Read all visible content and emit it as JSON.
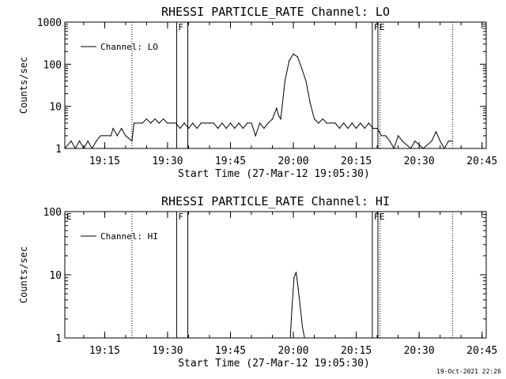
{
  "footer": {
    "date": "19-Oct-2021 22:26"
  },
  "chart_data": [
    {
      "type": "line",
      "title": "RHESSI PARTICLE_RATE Channel: LO",
      "xlabel": "Start Time (27-Mar-12 19:05:30)",
      "ylabel": "Counts/sec",
      "yscale": "log",
      "ylim": [
        1,
        1000
      ],
      "xlim": [
        "19:05:30",
        "20:46:00"
      ],
      "x_ticks": [
        "19:15",
        "19:30",
        "19:45",
        "20:00",
        "20:15",
        "20:30",
        "20:45"
      ],
      "y_ticks": [
        "1",
        "10",
        "100",
        "1000"
      ],
      "legend": {
        "entries": [
          "Channel: LO"
        ],
        "position": "top-left"
      },
      "markers": [
        {
          "label": "F",
          "time": "19:32:10",
          "style": "solid"
        },
        {
          "label": "",
          "time": "19:34:50",
          "style": "solid"
        },
        {
          "label": "F",
          "time": "20:18:50",
          "style": "solid"
        },
        {
          "label": "E",
          "time": "20:20:10",
          "style": "solid"
        },
        {
          "label": "",
          "time": "19:21:30",
          "style": "dotted"
        },
        {
          "label": "",
          "time": "20:20:40",
          "style": "dotted"
        },
        {
          "label": "",
          "time": "20:38:00",
          "style": "dotted"
        }
      ],
      "series": [
        {
          "name": "Channel: LO",
          "x": [
            "19:05:30",
            "19:07:00",
            "19:08:00",
            "19:09:00",
            "19:10:00",
            "19:11:00",
            "19:12:00",
            "19:13:00",
            "19:14:00",
            "19:16:30",
            "19:17:00",
            "19:18:00",
            "19:19:00",
            "19:20:00",
            "19:21:30",
            "19:22:00",
            "19:24:00",
            "19:25:00",
            "19:26:00",
            "19:27:00",
            "19:28:00",
            "19:29:00",
            "19:30:00",
            "19:31:00",
            "19:32:00",
            "19:33:00",
            "19:34:00",
            "19:35:00",
            "19:36:00",
            "19:37:00",
            "19:38:00",
            "19:39:00",
            "19:40:00",
            "19:41:00",
            "19:42:00",
            "19:43:00",
            "19:44:00",
            "19:45:00",
            "19:46:00",
            "19:47:00",
            "19:48:00",
            "19:49:00",
            "19:50:00",
            "19:51:00",
            "19:52:00",
            "19:53:00",
            "19:54:00",
            "19:55:00",
            "19:56:00",
            "19:56:30",
            "19:57:00",
            "19:58:00",
            "19:59:00",
            "20:00:00",
            "20:01:00",
            "20:02:00",
            "20:03:00",
            "20:04:00",
            "20:05:00",
            "20:06:00",
            "20:07:00",
            "20:08:00",
            "20:09:00",
            "20:10:00",
            "20:11:00",
            "20:12:00",
            "20:13:00",
            "20:14:00",
            "20:15:00",
            "20:16:00",
            "20:17:00",
            "20:18:00",
            "20:19:00",
            "20:20:00",
            "20:21:00",
            "20:22:00",
            "20:23:00",
            "20:24:00",
            "20:25:00",
            "20:26:00",
            "20:28:00",
            "20:29:00",
            "20:31:00",
            "20:33:00",
            "20:34:00",
            "20:35:00",
            "20:36:00",
            "20:37:00",
            "20:38:00"
          ],
          "y": [
            1,
            1.5,
            1,
            1.5,
            1,
            1.5,
            1,
            1.5,
            2,
            2,
            3,
            2,
            3,
            2,
            1.5,
            4,
            4,
            5,
            4,
            5,
            4,
            5,
            4,
            4,
            4,
            3,
            4,
            3,
            4,
            3,
            4,
            4,
            4,
            4,
            3,
            4,
            3,
            4,
            3,
            4,
            3,
            4,
            4,
            2,
            4,
            3,
            4,
            5,
            9,
            6,
            5,
            40,
            120,
            175,
            150,
            80,
            40,
            12,
            5,
            4,
            5,
            4,
            4,
            4,
            3,
            4,
            3,
            4,
            3,
            4,
            3,
            4,
            3,
            3,
            2,
            2,
            1.5,
            1,
            2,
            1.5,
            1,
            1.5,
            1,
            1.5,
            2.5,
            1.5,
            1,
            1.5,
            1.5
          ]
        }
      ]
    },
    {
      "type": "line",
      "title": "RHESSI PARTICLE_RATE Channel: HI",
      "xlabel": "Start Time (27-Mar-12 19:05:30)",
      "ylabel": "Counts/sec",
      "yscale": "log",
      "ylim": [
        1,
        100
      ],
      "xlim": [
        "19:05:30",
        "20:46:00"
      ],
      "x_ticks": [
        "19:15",
        "19:30",
        "19:45",
        "20:00",
        "20:15",
        "20:30",
        "20:45"
      ],
      "y_ticks": [
        "1",
        "10",
        "100"
      ],
      "legend": {
        "entries": [
          "Channel: HI"
        ],
        "position": "top-left"
      },
      "markers": [
        {
          "label": "E",
          "time": "19:05:30",
          "style": "none"
        },
        {
          "label": "F",
          "time": "19:32:10",
          "style": "solid"
        },
        {
          "label": "",
          "time": "19:34:50",
          "style": "solid"
        },
        {
          "label": "F",
          "time": "20:18:50",
          "style": "solid"
        },
        {
          "label": "E",
          "time": "20:20:10",
          "style": "solid"
        },
        {
          "label": "",
          "time": "19:21:30",
          "style": "dotted"
        },
        {
          "label": "",
          "time": "20:20:40",
          "style": "dotted"
        },
        {
          "label": "",
          "time": "20:38:00",
          "style": "dotted"
        }
      ],
      "series": [
        {
          "name": "Channel: HI",
          "x": [
            "19:59:15",
            "19:59:40",
            "20:00:10",
            "20:00:40",
            "20:01:10",
            "20:01:40",
            "20:02:10",
            "20:02:40"
          ],
          "y": [
            1,
            3,
            9,
            11,
            6,
            3,
            1.5,
            1
          ]
        }
      ]
    }
  ]
}
